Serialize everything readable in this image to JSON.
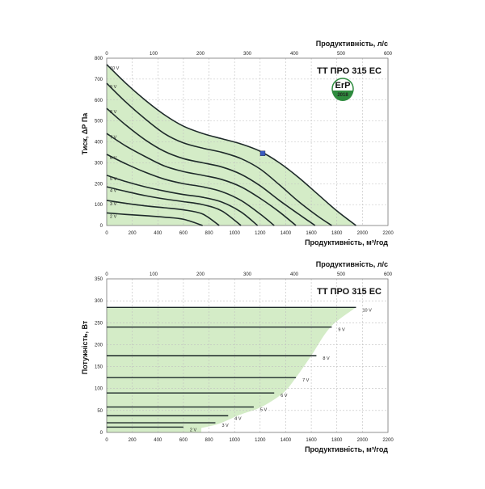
{
  "chart_data": [
    {
      "type": "line",
      "title": "TT ПРО 315 ЕС",
      "xlabel": "Продуктивність, м³/год",
      "x2label": "Продуктивність, л/с",
      "ylabel": "Тиск, ΔР Па",
      "xlim": [
        0,
        2200
      ],
      "x2lim": [
        0,
        600
      ],
      "ylim": [
        0,
        800
      ],
      "xticks": [
        0,
        200,
        400,
        600,
        800,
        1000,
        1200,
        1400,
        1600,
        1800,
        2000,
        2200
      ],
      "x2ticks": [
        0,
        100,
        200,
        300,
        400,
        500,
        600
      ],
      "yticks": [
        0,
        100,
        200,
        300,
        400,
        500,
        600,
        700,
        800
      ],
      "grid": true,
      "badge": {
        "top": "ErP",
        "bottom": "2018",
        "color": "#2e8b3e"
      },
      "marker": {
        "x": 1220,
        "y": 345,
        "color": "#3a5bbf"
      },
      "fill_color": "#d4ecc7",
      "series": [
        {
          "name": "10 V",
          "x": [
            0,
            150,
            300,
            450,
            600,
            750,
            900,
            1050,
            1200,
            1350,
            1500,
            1650,
            1800,
            1950
          ],
          "y": [
            770,
            680,
            600,
            530,
            475,
            440,
            415,
            390,
            355,
            300,
            230,
            150,
            70,
            0
          ]
        },
        {
          "name": "9 V",
          "x": [
            0,
            150,
            300,
            450,
            600,
            750,
            900,
            1050,
            1200,
            1350,
            1500,
            1650,
            1760
          ],
          "y": [
            680,
            590,
            510,
            440,
            395,
            370,
            350,
            320,
            270,
            195,
            115,
            45,
            0
          ]
        },
        {
          "name": "8 V",
          "x": [
            0,
            150,
            300,
            450,
            600,
            750,
            900,
            1050,
            1200,
            1350,
            1500,
            1630
          ],
          "y": [
            560,
            480,
            410,
            355,
            320,
            300,
            280,
            245,
            190,
            120,
            55,
            0
          ]
        },
        {
          "name": "7 V",
          "x": [
            0,
            150,
            300,
            450,
            600,
            750,
            900,
            1050,
            1200,
            1350,
            1480
          ],
          "y": [
            440,
            380,
            330,
            285,
            258,
            240,
            220,
            185,
            130,
            65,
            0
          ]
        },
        {
          "name": "6 V",
          "x": [
            0,
            150,
            300,
            450,
            600,
            750,
            900,
            1050,
            1200,
            1310
          ],
          "y": [
            340,
            295,
            255,
            222,
            200,
            185,
            162,
            120,
            55,
            0
          ]
        },
        {
          "name": "5 V",
          "x": [
            0,
            150,
            300,
            450,
            600,
            750,
            900,
            1050,
            1180
          ],
          "y": [
            240,
            210,
            185,
            165,
            148,
            135,
            112,
            65,
            0
          ]
        },
        {
          "name": "4 V",
          "x": [
            0,
            150,
            300,
            450,
            600,
            750,
            900,
            1050
          ],
          "y": [
            185,
            163,
            143,
            127,
            114,
            100,
            70,
            0
          ]
        },
        {
          "name": "3 V",
          "x": [
            0,
            150,
            300,
            450,
            600,
            750,
            880
          ],
          "y": [
            120,
            106,
            94,
            85,
            75,
            55,
            0
          ]
        },
        {
          "name": "2 V",
          "x": [
            0,
            150,
            300,
            450,
            600,
            750
          ],
          "y": [
            60,
            53,
            47,
            40,
            30,
            0
          ]
        }
      ]
    },
    {
      "type": "line",
      "title": "TT ПРО 315 ЕС",
      "xlabel": "Продуктивність, м³/год",
      "x2label": "Продуктивність, л/с",
      "ylabel": "Потужність, Вт",
      "xlim": [
        0,
        2200
      ],
      "x2lim": [
        0,
        600
      ],
      "ylim": [
        0,
        350
      ],
      "xticks": [
        0,
        200,
        400,
        600,
        800,
        1000,
        1200,
        1400,
        1600,
        1800,
        2000,
        2200
      ],
      "x2ticks": [
        0,
        100,
        200,
        300,
        400,
        500,
        600
      ],
      "yticks": [
        0,
        50,
        100,
        150,
        200,
        250,
        300,
        350
      ],
      "grid": true,
      "fill_color": "#d4ecc7",
      "envelope": {
        "x": [
          0,
          1950,
          1750,
          1600,
          1480,
          1380,
          1210,
          1040,
          880,
          740
        ],
        "y": [
          285,
          285,
          240,
          175,
          125,
          90,
          58,
          40,
          20,
          10
        ]
      },
      "series": [
        {
          "name": "10 V",
          "x": [
            0,
            1950
          ],
          "y": [
            285,
            285
          ]
        },
        {
          "name": "9 V",
          "x": [
            0,
            1760
          ],
          "y": [
            240,
            240
          ]
        },
        {
          "name": "8 V",
          "x": [
            0,
            1640
          ],
          "y": [
            175,
            175
          ]
        },
        {
          "name": "7 V",
          "x": [
            0,
            1480
          ],
          "y": [
            125,
            125
          ]
        },
        {
          "name": "6 V",
          "x": [
            0,
            1310
          ],
          "y": [
            90,
            90
          ]
        },
        {
          "name": "5 V",
          "x": [
            0,
            1150
          ],
          "y": [
            58,
            58
          ]
        },
        {
          "name": "4 V",
          "x": [
            0,
            950
          ],
          "y": [
            38,
            38
          ]
        },
        {
          "name": "3 V",
          "x": [
            0,
            850
          ],
          "y": [
            22,
            22
          ]
        },
        {
          "name": "2 V",
          "x": [
            0,
            600
          ],
          "y": [
            12,
            12
          ]
        }
      ]
    }
  ]
}
